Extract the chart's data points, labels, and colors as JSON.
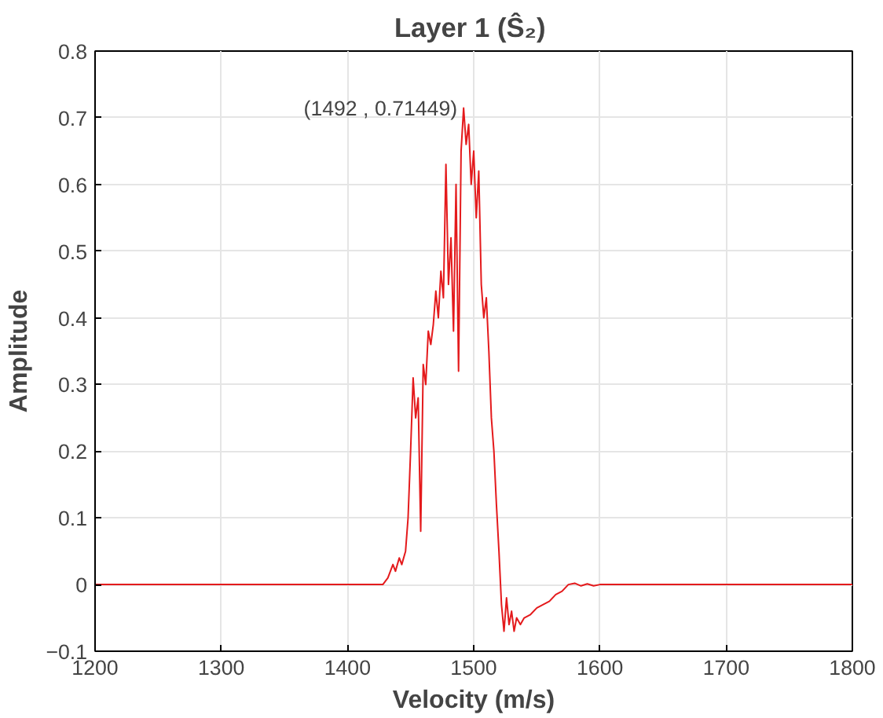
{
  "chart_data": {
    "type": "line",
    "title": "Layer 1  (Ŝ₂)",
    "xlabel": "Velocity (m/s)",
    "ylabel": "Amplitude",
    "x": [
      1200,
      1428,
      1432,
      1436,
      1438,
      1441,
      1443,
      1446,
      1448,
      1450,
      1452,
      1454,
      1456,
      1458,
      1460,
      1462,
      1464,
      1466,
      1468,
      1470,
      1472,
      1474,
      1476,
      1478,
      1480,
      1482,
      1484,
      1486,
      1488,
      1490,
      1492,
      1494,
      1496,
      1498,
      1500,
      1502,
      1504,
      1506,
      1508,
      1510,
      1512,
      1514,
      1516,
      1518,
      1520,
      1522,
      1524,
      1526,
      1528,
      1530,
      1532,
      1534,
      1537,
      1540,
      1545,
      1550,
      1555,
      1560,
      1565,
      1570,
      1575,
      1580,
      1585,
      1590,
      1595,
      1600,
      1800
    ],
    "series": [
      {
        "color": "#e41a1c",
        "values": [
          0,
          0,
          0.01,
          0.03,
          0.02,
          0.04,
          0.03,
          0.05,
          0.1,
          0.2,
          0.31,
          0.25,
          0.28,
          0.08,
          0.33,
          0.3,
          0.38,
          0.36,
          0.39,
          0.44,
          0.4,
          0.47,
          0.43,
          0.63,
          0.45,
          0.52,
          0.38,
          0.6,
          0.32,
          0.65,
          0.71449,
          0.66,
          0.69,
          0.6,
          0.65,
          0.55,
          0.62,
          0.45,
          0.4,
          0.43,
          0.35,
          0.25,
          0.2,
          0.12,
          0.05,
          -0.03,
          -0.07,
          -0.02,
          -0.06,
          -0.04,
          -0.07,
          -0.05,
          -0.06,
          -0.05,
          -0.045,
          -0.035,
          -0.03,
          -0.025,
          -0.015,
          -0.01,
          0,
          0.002,
          -0.002,
          0.001,
          -0.002,
          0,
          0
        ]
      }
    ],
    "xlim": [
      1200,
      1800
    ],
    "xticks": [
      1200,
      1300,
      1400,
      1500,
      1600,
      1700,
      1800
    ],
    "ylim": [
      -0.1,
      0.8
    ],
    "yticks": [
      -0.1,
      0,
      0.1,
      0.2,
      0.3,
      0.4,
      0.5,
      0.6,
      0.7,
      0.8
    ],
    "grid": true,
    "marker": "none",
    "line_style": "solid",
    "annotations": [
      {
        "text": "(1492 , 0.71449)",
        "x": 1492,
        "y": 0.71449
      }
    ]
  }
}
